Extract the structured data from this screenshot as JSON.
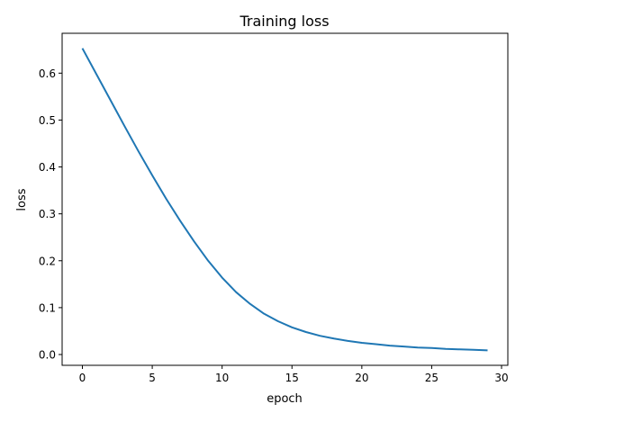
{
  "chart_data": {
    "type": "line",
    "title": "Training loss",
    "xlabel": "epoch",
    "ylabel": "loss",
    "xlim": [
      -1.45,
      30.45
    ],
    "ylim": [
      -0.023,
      0.685
    ],
    "xticks": [
      0,
      5,
      10,
      15,
      20,
      25,
      30
    ],
    "xtick_labels": [
      "0",
      "5",
      "10",
      "15",
      "20",
      "25",
      "30"
    ],
    "yticks": [
      0.0,
      0.1,
      0.2,
      0.3,
      0.4,
      0.5,
      0.6
    ],
    "ytick_labels": [
      "0.0",
      "0.1",
      "0.2",
      "0.3",
      "0.4",
      "0.5",
      "0.6"
    ],
    "grid": false,
    "series": [
      {
        "name": "loss",
        "color": "#1f77b4",
        "x": [
          0,
          1,
          2,
          3,
          4,
          5,
          6,
          7,
          8,
          9,
          10,
          11,
          12,
          13,
          14,
          15,
          16,
          17,
          18,
          19,
          20,
          21,
          22,
          23,
          24,
          25,
          26,
          27,
          28,
          29
        ],
        "y": [
          0.653,
          0.598,
          0.543,
          0.488,
          0.434,
          0.382,
          0.332,
          0.285,
          0.241,
          0.2,
          0.164,
          0.133,
          0.108,
          0.087,
          0.071,
          0.058,
          0.048,
          0.04,
          0.034,
          0.029,
          0.025,
          0.022,
          0.019,
          0.017,
          0.015,
          0.014,
          0.012,
          0.011,
          0.01,
          0.009
        ]
      }
    ]
  }
}
